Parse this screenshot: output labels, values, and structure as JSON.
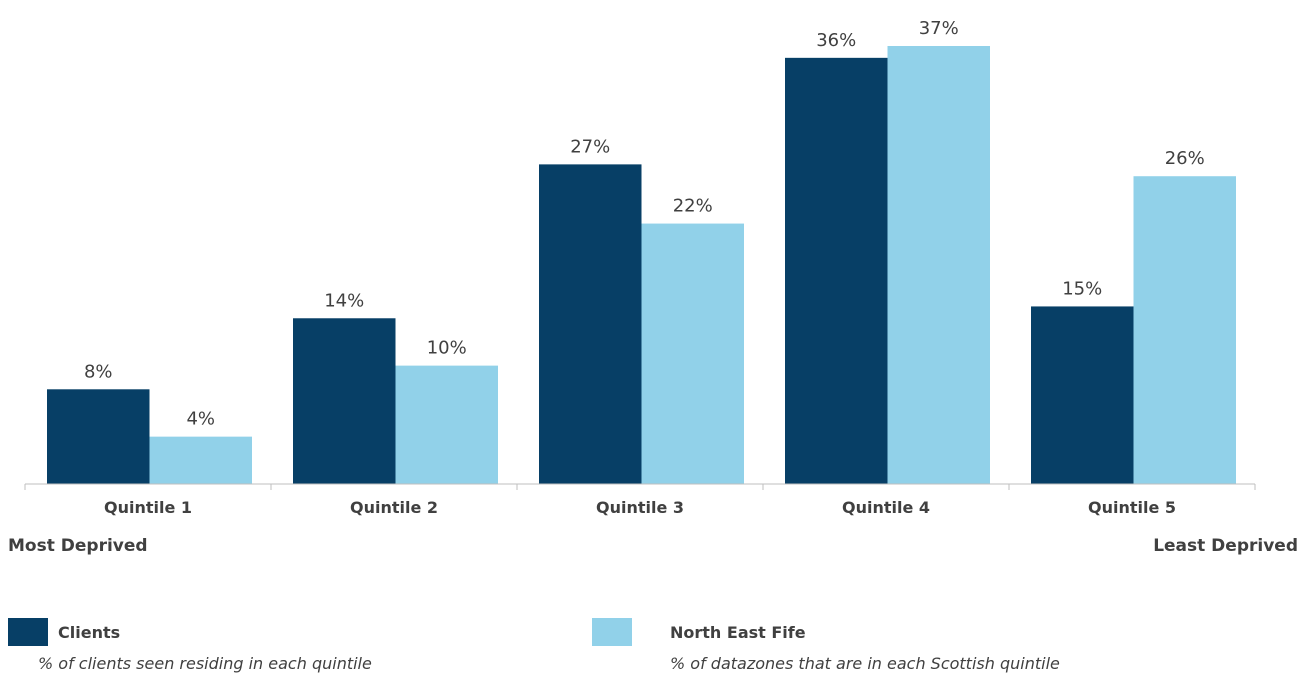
{
  "chart_data": {
    "type": "bar",
    "categories": [
      "Quintile 1",
      "Quintile 2",
      "Quintile 3",
      "Quintile 4",
      "Quintile 5"
    ],
    "series": [
      {
        "name": "Clients",
        "values": [
          8,
          14,
          27,
          36,
          15
        ],
        "labels": [
          "8%",
          "14%",
          "27%",
          "36%",
          "15%"
        ],
        "color": "#073f66"
      },
      {
        "name": "North East Fife",
        "values": [
          4,
          10,
          22,
          37,
          26
        ],
        "labels": [
          "4%",
          "10%",
          "22%",
          "37%",
          "26%"
        ],
        "color": "#91d1e9"
      }
    ],
    "ylim": [
      0,
      37
    ],
    "grid": false,
    "legend_position": "bottom"
  },
  "axis_ends": {
    "left": "Most Deprived",
    "right": "Least Deprived"
  },
  "legend": [
    {
      "name": "Clients",
      "description": "% of clients seen residing in each quintile"
    },
    {
      "name": "North East Fife",
      "description": "% of datazones that are in each Scottish quintile"
    }
  ]
}
